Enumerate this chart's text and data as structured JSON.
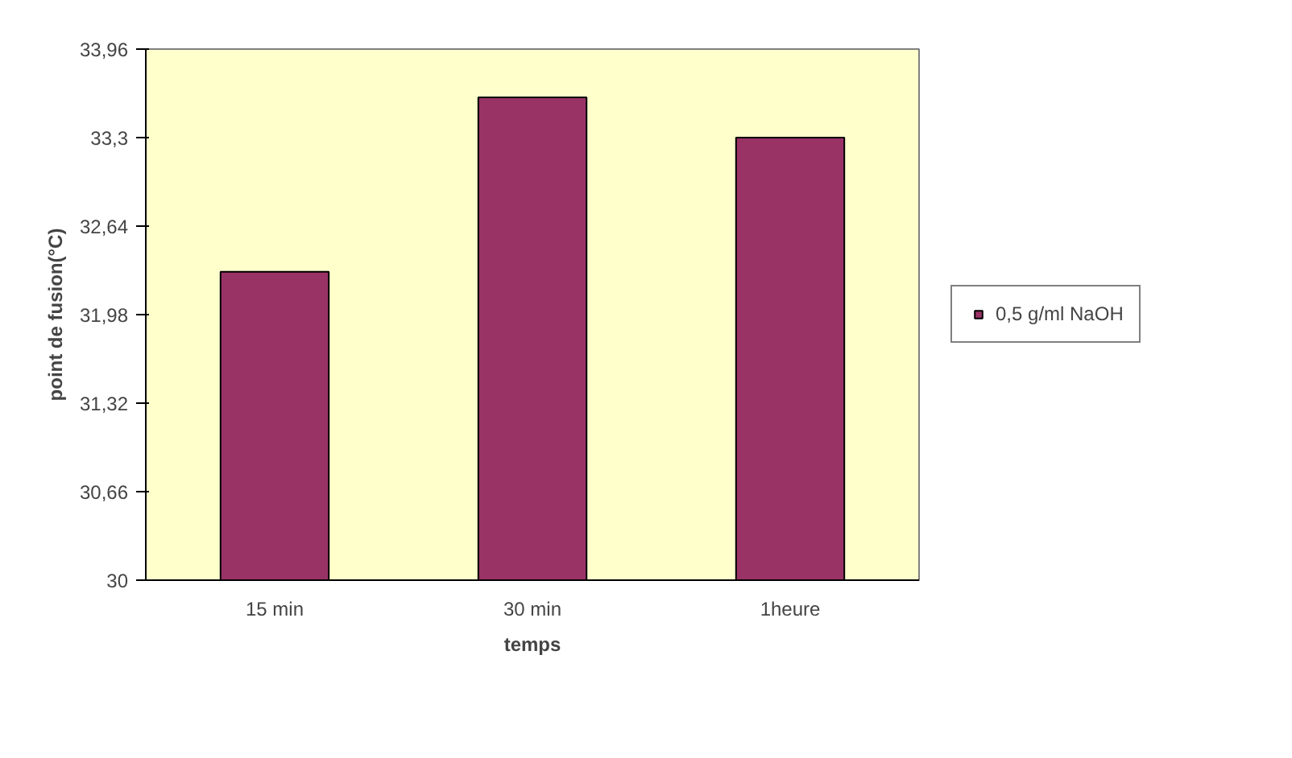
{
  "chart_data": {
    "type": "bar",
    "xlabel": "temps",
    "ylabel": "point de fusion(°C)",
    "categories": [
      "15 min",
      "30 min",
      "1heure"
    ],
    "series": [
      {
        "name": "0,5 g/ml NaOH",
        "color": "#993366",
        "values": [
          32.3,
          33.6,
          33.3
        ]
      }
    ],
    "ylim": [
      30,
      33.96
    ],
    "yticks": [
      30,
      {
        "value": 30.66,
        "label": "30,66"
      },
      {
        "value": 31.32,
        "label": "31,32"
      },
      {
        "value": 31.98,
        "label": "31,98"
      },
      {
        "value": 32.64,
        "label": "32,64"
      },
      {
        "value": 33.3,
        "label": "33,3"
      },
      {
        "value": 33.96,
        "label": "33,96"
      }
    ],
    "legend": "right"
  }
}
